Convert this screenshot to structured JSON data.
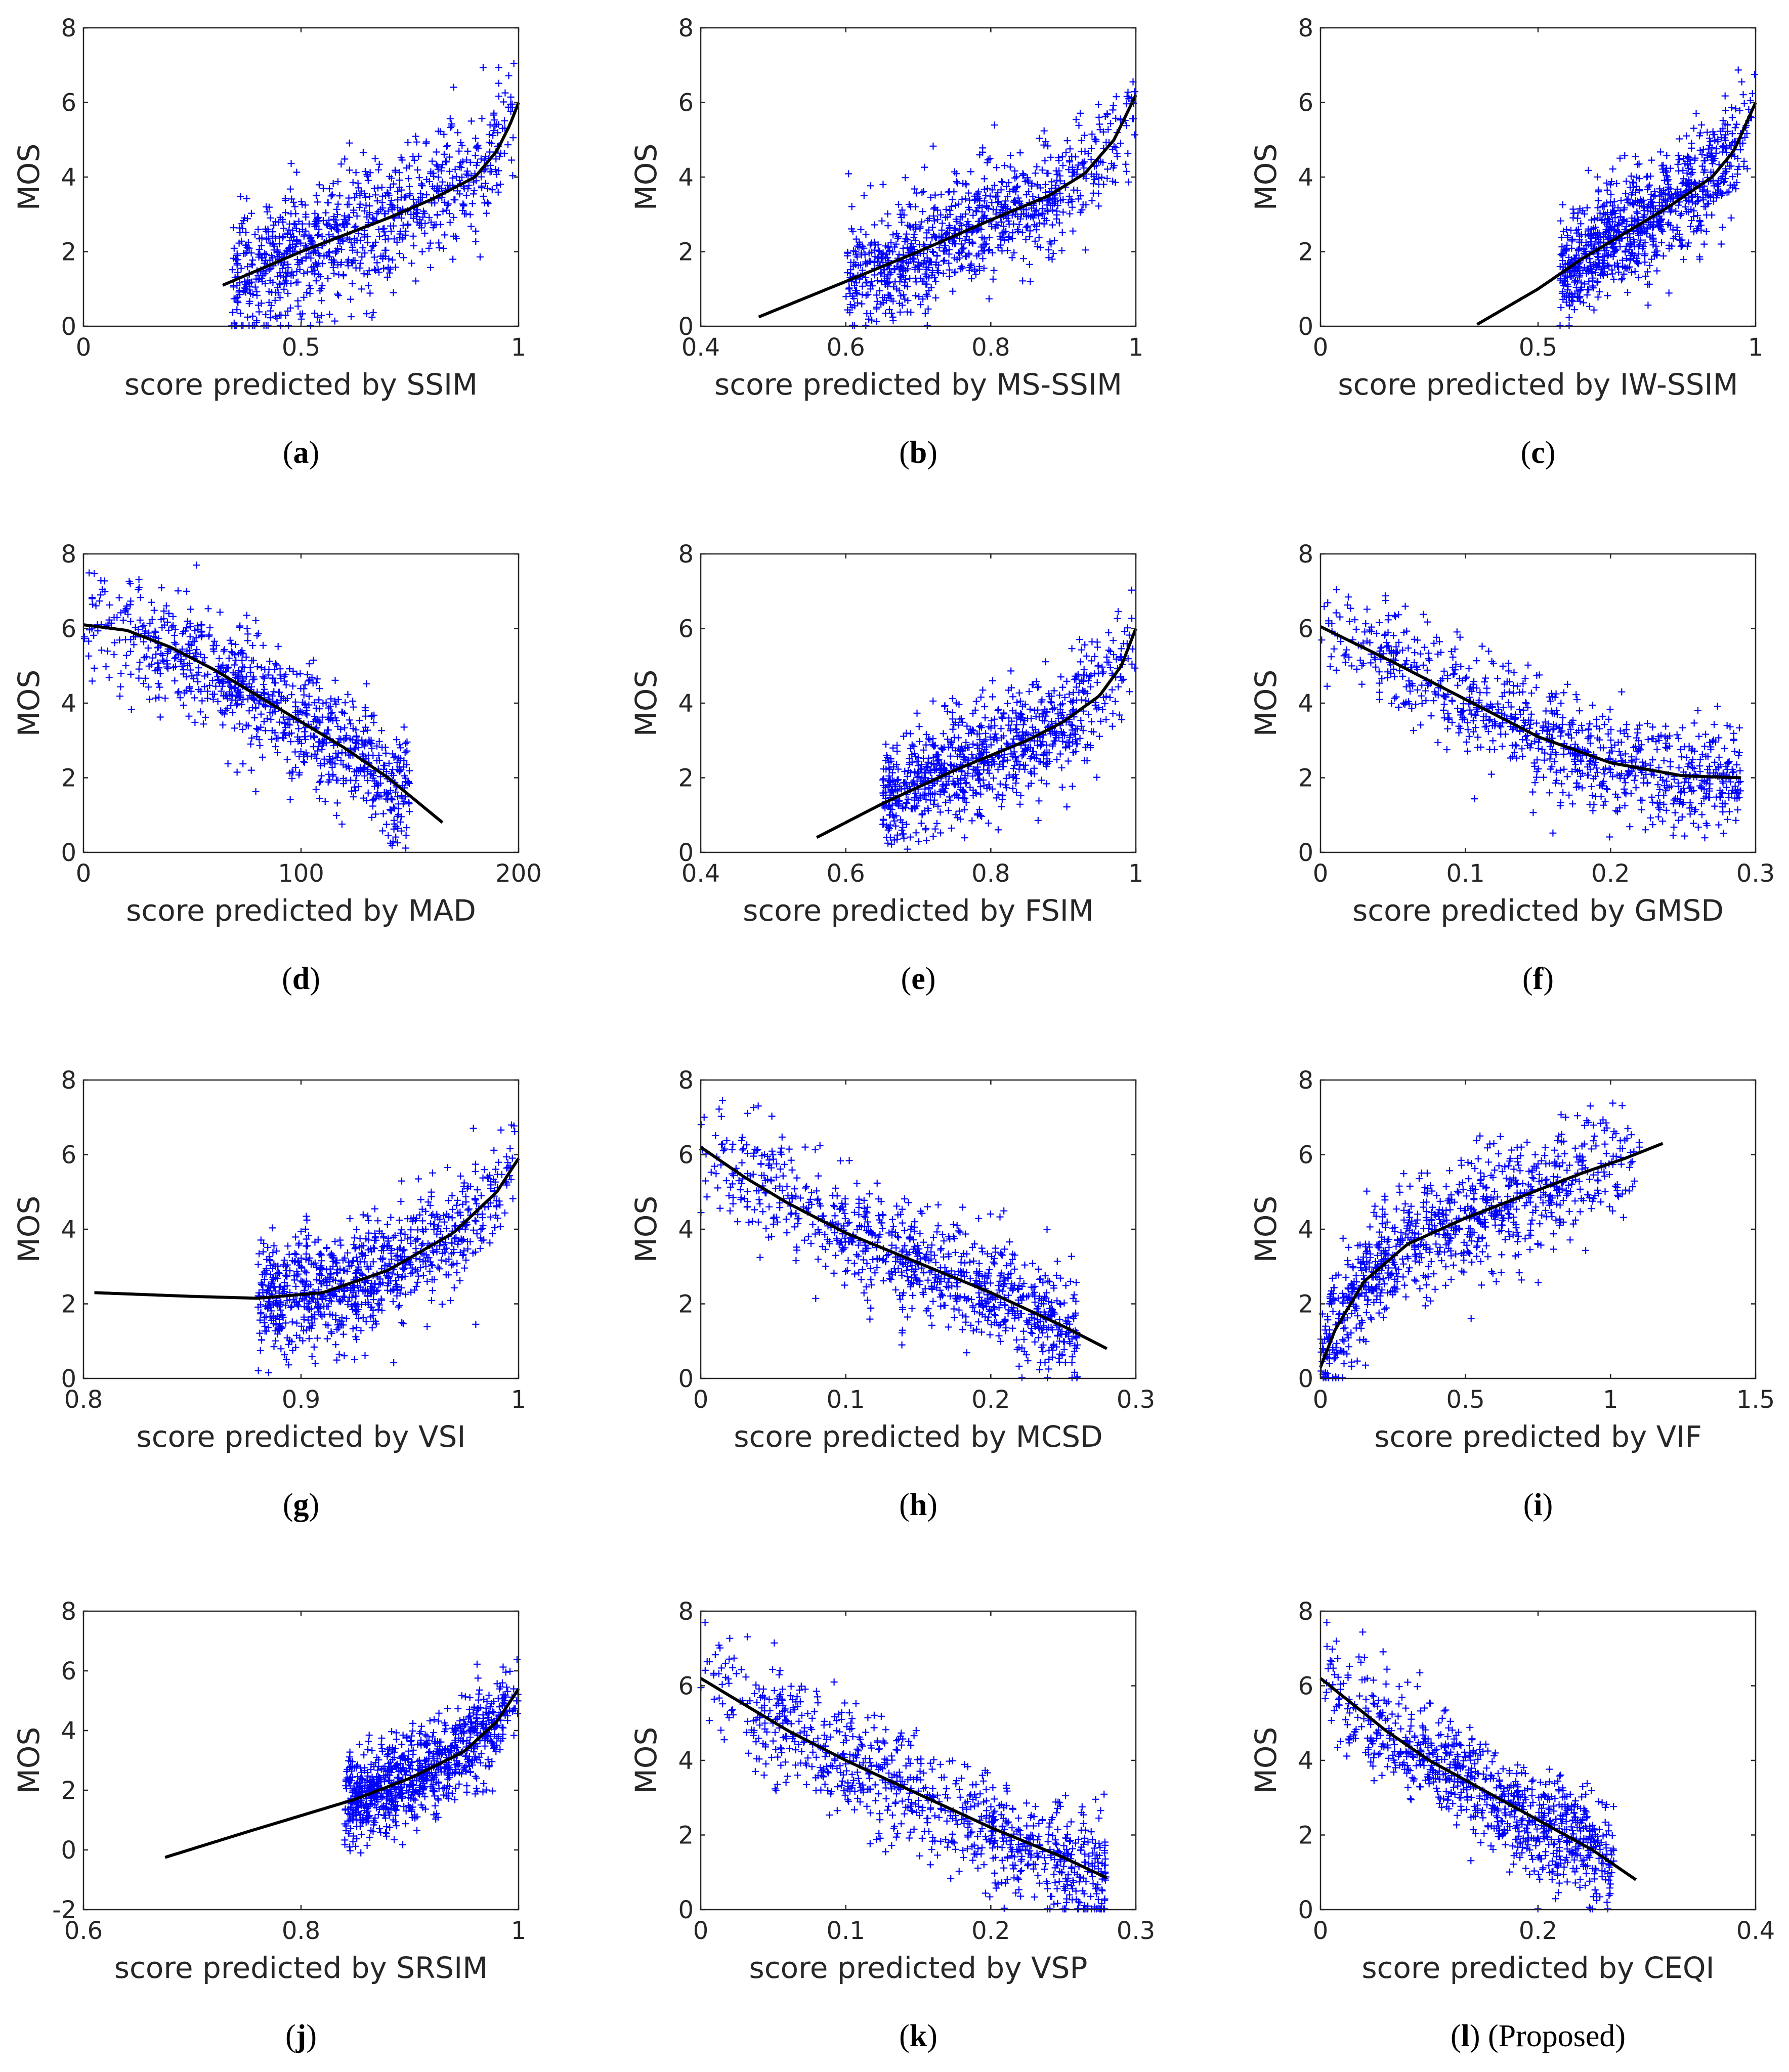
{
  "figure": {
    "mark_color": "#0000ff",
    "fit_color": "#000000",
    "ylabel": "MOS"
  },
  "chart_data": [
    {
      "type": "scatter",
      "label": "a",
      "caption_suffix": "",
      "xlabel": "score predicted by SSIM",
      "ylabel": "MOS",
      "xlim": [
        0,
        1
      ],
      "ylim": [
        0,
        8
      ],
      "xticks": [
        0,
        0.5,
        1
      ],
      "xtick_labels": [
        "0",
        "0.5",
        "1"
      ],
      "yticks": [
        0,
        2,
        4,
        6,
        8
      ],
      "ytick_labels": [
        "0",
        "2",
        "4",
        "6",
        "8"
      ],
      "fit": {
        "x": [
          0.32,
          0.5,
          0.7,
          0.8,
          0.9,
          0.95,
          0.98,
          1.0
        ],
        "y": [
          1.1,
          2.0,
          2.9,
          3.4,
          4.0,
          4.7,
          5.4,
          6.0
        ]
      },
      "scatter": {
        "x_range": [
          0.34,
          1.0
        ],
        "noise": 0.9,
        "count": 900
      }
    },
    {
      "type": "scatter",
      "label": "b",
      "caption_suffix": "",
      "xlabel": "score predicted by MS-SSIM",
      "ylabel": "MOS",
      "xlim": [
        0.4,
        1
      ],
      "ylim": [
        0,
        8
      ],
      "xticks": [
        0.4,
        0.6,
        0.8,
        1
      ],
      "xtick_labels": [
        "0.4",
        "0.6",
        "0.8",
        "1"
      ],
      "yticks": [
        0,
        2,
        4,
        6,
        8
      ],
      "ytick_labels": [
        "0",
        "2",
        "4",
        "6",
        "8"
      ],
      "fit": {
        "x": [
          0.48,
          0.6,
          0.7,
          0.8,
          0.88,
          0.93,
          0.97,
          1.0
        ],
        "y": [
          0.25,
          1.2,
          2.0,
          2.85,
          3.5,
          4.1,
          5.0,
          6.2
        ]
      },
      "scatter": {
        "x_range": [
          0.6,
          1.0
        ],
        "noise": 0.75,
        "count": 900
      }
    },
    {
      "type": "scatter",
      "label": "c",
      "caption_suffix": "",
      "xlabel": "score predicted by IW-SSIM",
      "ylabel": "MOS",
      "xlim": [
        0,
        1
      ],
      "ylim": [
        0,
        8
      ],
      "xticks": [
        0,
        0.5,
        1
      ],
      "xtick_labels": [
        "0",
        "0.5",
        "1"
      ],
      "yticks": [
        0,
        2,
        4,
        6,
        8
      ],
      "ytick_labels": [
        "0",
        "2",
        "4",
        "6",
        "8"
      ],
      "fit": {
        "x": [
          0.36,
          0.5,
          0.6,
          0.7,
          0.8,
          0.9,
          0.95,
          1.0
        ],
        "y": [
          0.05,
          1.0,
          1.8,
          2.5,
          3.2,
          4.0,
          4.7,
          6.0
        ]
      },
      "scatter": {
        "x_range": [
          0.55,
          1.0
        ],
        "noise": 0.7,
        "count": 900
      }
    },
    {
      "type": "scatter",
      "label": "d",
      "caption_suffix": "",
      "xlabel": "score predicted by MAD",
      "ylabel": "MOS",
      "xlim": [
        0,
        200
      ],
      "ylim": [
        0,
        8
      ],
      "xticks": [
        0,
        100,
        200
      ],
      "xtick_labels": [
        "0",
        "100",
        "200"
      ],
      "yticks": [
        0,
        2,
        4,
        6,
        8
      ],
      "ytick_labels": [
        "0",
        "2",
        "4",
        "6",
        "8"
      ],
      "fit": {
        "x": [
          0,
          20,
          40,
          60,
          80,
          100,
          120,
          140,
          165
        ],
        "y": [
          6.1,
          5.95,
          5.5,
          4.9,
          4.2,
          3.5,
          2.8,
          2.0,
          0.8
        ]
      },
      "scatter": {
        "x_range": [
          0,
          150
        ],
        "noise": 0.8,
        "count": 900
      }
    },
    {
      "type": "scatter",
      "label": "e",
      "caption_suffix": "",
      "xlabel": "score predicted by FSIM",
      "ylabel": "MOS",
      "xlim": [
        0.4,
        1
      ],
      "ylim": [
        0,
        8
      ],
      "xticks": [
        0.4,
        0.6,
        0.8,
        1
      ],
      "xtick_labels": [
        "0.4",
        "0.6",
        "0.8",
        "1"
      ],
      "yticks": [
        0,
        2,
        4,
        6,
        8
      ],
      "ytick_labels": [
        "0",
        "2",
        "4",
        "6",
        "8"
      ],
      "fit": {
        "x": [
          0.56,
          0.65,
          0.75,
          0.85,
          0.9,
          0.95,
          0.98,
          1.0
        ],
        "y": [
          0.4,
          1.3,
          2.2,
          3.0,
          3.5,
          4.2,
          5.0,
          6.0
        ]
      },
      "scatter": {
        "x_range": [
          0.65,
          1.0
        ],
        "noise": 0.75,
        "count": 900
      }
    },
    {
      "type": "scatter",
      "label": "f",
      "caption_suffix": "",
      "xlabel": "score predicted by GMSD",
      "ylabel": "MOS",
      "xlim": [
        0,
        0.3
      ],
      "ylim": [
        0,
        8
      ],
      "xticks": [
        0,
        0.1,
        0.2,
        0.3
      ],
      "xtick_labels": [
        "0",
        "0.1",
        "0.2",
        "0.3"
      ],
      "yticks": [
        0,
        2,
        4,
        6,
        8
      ],
      "ytick_labels": [
        "0",
        "2",
        "4",
        "6",
        "8"
      ],
      "fit": {
        "x": [
          0,
          0.05,
          0.1,
          0.15,
          0.2,
          0.25,
          0.29
        ],
        "y": [
          6.05,
          5.1,
          4.1,
          3.1,
          2.4,
          2.05,
          2.0
        ]
      },
      "scatter": {
        "x_range": [
          0,
          0.29
        ],
        "noise": 0.75,
        "count": 900
      }
    },
    {
      "type": "scatter",
      "label": "g",
      "caption_suffix": "",
      "xlabel": "score predicted by VSI",
      "ylabel": "MOS",
      "xlim": [
        0.8,
        1
      ],
      "ylim": [
        0,
        8
      ],
      "xticks": [
        0.8,
        0.9,
        1
      ],
      "xtick_labels": [
        "0.8",
        "0.9",
        "1"
      ],
      "yticks": [
        0,
        2,
        4,
        6,
        8
      ],
      "ytick_labels": [
        "0",
        "2",
        "4",
        "6",
        "8"
      ],
      "fit": {
        "x": [
          0.805,
          0.85,
          0.88,
          0.91,
          0.94,
          0.97,
          0.99,
          1.0
        ],
        "y": [
          2.3,
          2.2,
          2.15,
          2.3,
          2.9,
          3.9,
          5.0,
          5.9
        ]
      },
      "scatter": {
        "x_range": [
          0.88,
          1.0
        ],
        "noise": 0.8,
        "count": 900
      }
    },
    {
      "type": "scatter",
      "label": "h",
      "caption_suffix": "",
      "xlabel": "score predicted by MCSD",
      "ylabel": "MOS",
      "xlim": [
        0,
        0.3
      ],
      "ylim": [
        0,
        8
      ],
      "xticks": [
        0,
        0.1,
        0.2,
        0.3
      ],
      "xtick_labels": [
        "0",
        "0.1",
        "0.2",
        "0.3"
      ],
      "yticks": [
        0,
        2,
        4,
        6,
        8
      ],
      "ytick_labels": [
        "0",
        "2",
        "4",
        "6",
        "8"
      ],
      "fit": {
        "x": [
          0,
          0.03,
          0.06,
          0.1,
          0.15,
          0.2,
          0.25,
          0.28
        ],
        "y": [
          6.2,
          5.4,
          4.7,
          3.9,
          3.1,
          2.3,
          1.4,
          0.8
        ]
      },
      "scatter": {
        "x_range": [
          0,
          0.26
        ],
        "noise": 0.7,
        "count": 900
      }
    },
    {
      "type": "scatter",
      "label": "i",
      "caption_suffix": "",
      "xlabel": "score predicted by VIF",
      "ylabel": "MOS",
      "xlim": [
        0,
        1.5
      ],
      "ylim": [
        0,
        8
      ],
      "xticks": [
        0,
        0.5,
        1,
        1.5
      ],
      "xtick_labels": [
        "0",
        "0.5",
        "1",
        "1.5"
      ],
      "yticks": [
        0,
        2,
        4,
        6,
        8
      ],
      "ytick_labels": [
        "0",
        "2",
        "4",
        "6",
        "8"
      ],
      "fit": {
        "x": [
          0,
          0.05,
          0.15,
          0.3,
          0.5,
          0.7,
          0.9,
          1.05,
          1.18
        ],
        "y": [
          0.3,
          1.3,
          2.6,
          3.6,
          4.3,
          4.9,
          5.5,
          5.9,
          6.3
        ]
      },
      "scatter": {
        "x_range": [
          0,
          1.1
        ],
        "noise": 0.8,
        "count": 900
      }
    },
    {
      "type": "scatter",
      "label": "j",
      "caption_suffix": "",
      "xlabel": "score predicted by SRSIM",
      "ylabel": "MOS",
      "xlim": [
        0.6,
        1
      ],
      "ylim": [
        -2,
        8
      ],
      "xticks": [
        0.6,
        0.8,
        1
      ],
      "xtick_labels": [
        "0.6",
        "0.8",
        "1"
      ],
      "yticks": [
        -2,
        0,
        2,
        4,
        6,
        8
      ],
      "ytick_labels": [
        "-2",
        "0",
        "2",
        "4",
        "6",
        "8"
      ],
      "fit": {
        "x": [
          0.675,
          0.75,
          0.85,
          0.9,
          0.95,
          0.98,
          1.0
        ],
        "y": [
          -0.25,
          0.6,
          1.7,
          2.4,
          3.3,
          4.3,
          5.4
        ]
      },
      "scatter": {
        "x_range": [
          0.84,
          1.0
        ],
        "noise": 0.75,
        "count": 900
      }
    },
    {
      "type": "scatter",
      "label": "k",
      "caption_suffix": "",
      "xlabel": "score predicted by VSP",
      "ylabel": "MOS",
      "xlim": [
        0,
        0.3
      ],
      "ylim": [
        0,
        8
      ],
      "xticks": [
        0,
        0.1,
        0.2,
        0.3
      ],
      "xtick_labels": [
        "0",
        "0.1",
        "0.2",
        "0.3"
      ],
      "yticks": [
        0,
        2,
        4,
        6,
        8
      ],
      "ytick_labels": [
        "0",
        "2",
        "4",
        "6",
        "8"
      ],
      "fit": {
        "x": [
          0,
          0.03,
          0.06,
          0.1,
          0.15,
          0.2,
          0.25,
          0.28
        ],
        "y": [
          6.2,
          5.5,
          4.8,
          4.0,
          3.1,
          2.2,
          1.4,
          0.85
        ]
      },
      "scatter": {
        "x_range": [
          0,
          0.28
        ],
        "noise": 0.75,
        "count": 900
      }
    },
    {
      "type": "scatter",
      "label": "l",
      "caption_suffix": " (Proposed)",
      "xlabel": "score predicted by CEQI",
      "ylabel": "MOS",
      "xlim": [
        0,
        0.4
      ],
      "ylim": [
        0,
        8
      ],
      "xticks": [
        0,
        0.2,
        0.4
      ],
      "xtick_labels": [
        "0",
        "0.2",
        "0.4"
      ],
      "yticks": [
        0,
        2,
        4,
        6,
        8
      ],
      "ytick_labels": [
        "0",
        "2",
        "4",
        "6",
        "8"
      ],
      "fit": {
        "x": [
          0,
          0.03,
          0.06,
          0.1,
          0.15,
          0.2,
          0.25,
          0.29
        ],
        "y": [
          6.2,
          5.5,
          4.8,
          4.0,
          3.2,
          2.4,
          1.6,
          0.8
        ]
      },
      "scatter": {
        "x_range": [
          0,
          0.27
        ],
        "noise": 0.7,
        "count": 900
      }
    }
  ]
}
